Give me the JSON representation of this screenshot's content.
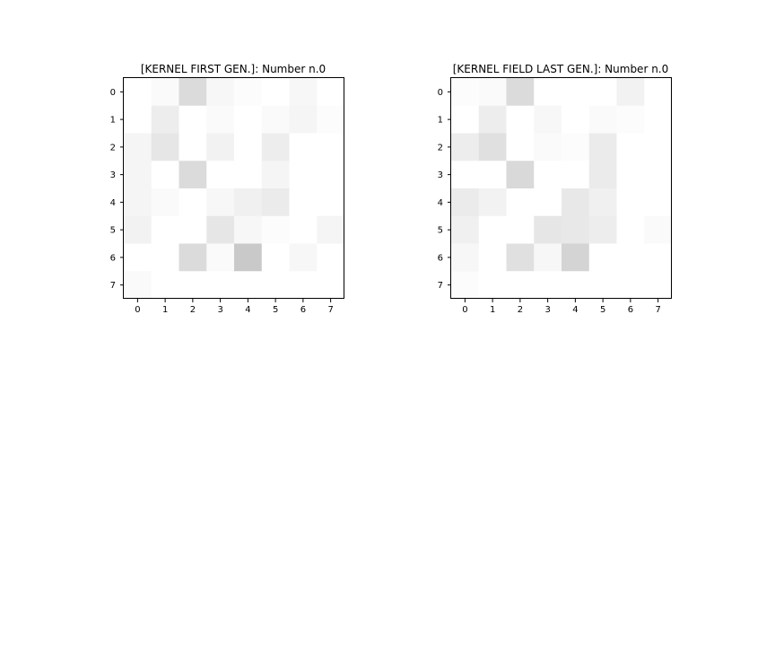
{
  "figure": {
    "panels": [
      {
        "title": "[KERNEL FIRST GEN.]: Number n.0"
      },
      {
        "title": "[KERNEL FIELD LAST GEN.]: Number n.0"
      }
    ]
  },
  "chart_data": [
    {
      "type": "heatmap",
      "title": "[KERNEL FIRST GEN.]: Number n.0",
      "xlabel": "",
      "ylabel": "",
      "x_ticks": [
        "0",
        "1",
        "2",
        "3",
        "4",
        "5",
        "6",
        "7"
      ],
      "y_ticks": [
        "0",
        "1",
        "2",
        "3",
        "4",
        "5",
        "6",
        "7"
      ],
      "colormap": "greys",
      "value_range": [
        0,
        1
      ],
      "grid": false,
      "values": [
        [
          0.0,
          0.02,
          0.14,
          0.03,
          0.01,
          0.0,
          0.03,
          0.0
        ],
        [
          0.0,
          0.07,
          0.0,
          0.02,
          0.0,
          0.02,
          0.04,
          0.01
        ],
        [
          0.04,
          0.1,
          0.0,
          0.05,
          0.0,
          0.07,
          0.0,
          0.0
        ],
        [
          0.04,
          0.0,
          0.14,
          0.0,
          0.0,
          0.04,
          0.0,
          0.0
        ],
        [
          0.04,
          0.02,
          0.0,
          0.03,
          0.06,
          0.08,
          0.0,
          0.0
        ],
        [
          0.05,
          0.0,
          0.0,
          0.1,
          0.03,
          0.01,
          0.0,
          0.04
        ],
        [
          0.0,
          0.0,
          0.14,
          0.02,
          0.21,
          0.0,
          0.03,
          0.0
        ],
        [
          0.02,
          0.0,
          0.0,
          0.0,
          0.0,
          0.0,
          0.0,
          0.0
        ]
      ]
    },
    {
      "type": "heatmap",
      "title": "[KERNEL FIELD LAST GEN.]: Number n.0",
      "xlabel": "",
      "ylabel": "",
      "x_ticks": [
        "0",
        "1",
        "2",
        "3",
        "4",
        "5",
        "6",
        "7"
      ],
      "y_ticks": [
        "0",
        "1",
        "2",
        "3",
        "4",
        "5",
        "6",
        "7"
      ],
      "colormap": "greys",
      "value_range": [
        0,
        1
      ],
      "grid": false,
      "values": [
        [
          0.01,
          0.02,
          0.14,
          0.0,
          0.0,
          0.0,
          0.05,
          0.0
        ],
        [
          0.0,
          0.07,
          0.0,
          0.03,
          0.0,
          0.02,
          0.01,
          0.0
        ],
        [
          0.07,
          0.12,
          0.0,
          0.02,
          0.01,
          0.08,
          0.0,
          0.0
        ],
        [
          0.0,
          0.0,
          0.15,
          0.0,
          0.0,
          0.08,
          0.0,
          0.0
        ],
        [
          0.08,
          0.05,
          0.0,
          0.0,
          0.09,
          0.06,
          0.0,
          0.0
        ],
        [
          0.06,
          0.0,
          0.0,
          0.1,
          0.09,
          0.07,
          0.0,
          0.02
        ],
        [
          0.03,
          0.0,
          0.12,
          0.03,
          0.17,
          0.0,
          0.0,
          0.0
        ],
        [
          0.01,
          0.0,
          0.0,
          0.0,
          0.0,
          0.0,
          0.0,
          0.0
        ]
      ]
    }
  ]
}
